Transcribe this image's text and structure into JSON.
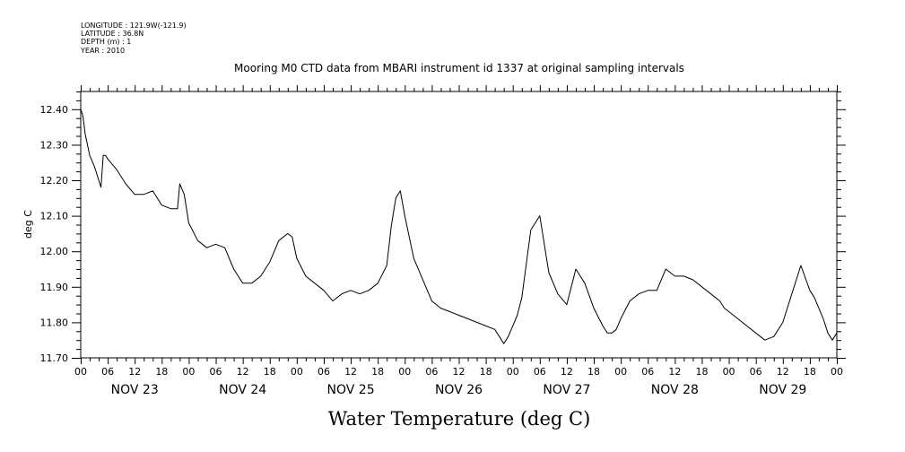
{
  "header": {
    "meta_lines": [
      "LONGITUDE : 121.9W(-121.9)",
      "LATITUDE : 36.8N",
      "DEPTH (m) : 1",
      "YEAR : 2010"
    ]
  },
  "chart_data": {
    "type": "line",
    "title": "Mooring M0 CTD data from MBARI instrument id 1337 at original sampling intervals",
    "xlabel": "Water Temperature (deg C)",
    "ylabel": "deg C",
    "ylim": [
      11.7,
      12.45
    ],
    "yticks": [
      "12.40",
      "12.30",
      "12.20",
      "12.10",
      "12.00",
      "11.90",
      "11.80",
      "11.70"
    ],
    "x_range_hours": [
      0,
      168
    ],
    "hour_tick_labels": [
      "00",
      "06",
      "12",
      "18"
    ],
    "day_labels": [
      "NOV 23",
      "NOV 24",
      "NOV 25",
      "NOV 26",
      "NOV 27",
      "NOV 28",
      "NOV 29"
    ],
    "grid": false,
    "color": "#000000",
    "series": [
      {
        "x_hours": [
          0,
          0.5,
          1,
          2,
          3,
          4,
          4.5,
          5,
          5.5,
          6,
          8,
          10,
          12,
          14,
          16,
          18,
          20,
          21.5,
          22,
          23,
          24,
          26,
          28,
          30,
          32,
          34,
          36,
          38,
          40,
          42,
          44,
          46,
          47,
          48,
          50,
          52,
          54,
          56,
          58,
          60,
          62,
          64,
          66,
          68,
          69,
          70,
          71,
          72,
          74,
          76,
          78,
          80,
          82,
          84,
          86,
          88,
          90,
          92,
          93,
          94,
          95,
          96,
          97,
          98,
          100,
          102,
          104,
          106,
          108,
          110,
          112,
          114,
          116,
          117,
          118,
          119,
          120,
          122,
          124,
          126,
          128,
          130,
          132,
          134,
          136,
          138,
          140,
          141,
          142,
          143,
          144,
          146,
          148,
          150,
          152,
          154,
          156,
          158,
          160,
          162,
          163,
          164,
          165,
          166,
          167,
          168
        ],
        "y": [
          12.4,
          12.38,
          12.33,
          12.27,
          12.24,
          12.2,
          12.18,
          12.27,
          12.27,
          12.26,
          12.23,
          12.19,
          12.16,
          12.16,
          12.17,
          12.13,
          12.12,
          12.12,
          12.19,
          12.16,
          12.08,
          12.03,
          12.01,
          12.02,
          12.01,
          11.95,
          11.91,
          11.91,
          11.93,
          11.97,
          12.03,
          12.05,
          12.04,
          11.98,
          11.93,
          11.91,
          11.89,
          11.86,
          11.88,
          11.89,
          11.88,
          11.89,
          11.91,
          11.96,
          12.07,
          12.15,
          12.17,
          12.1,
          11.98,
          11.92,
          11.86,
          11.84,
          11.83,
          11.82,
          11.81,
          11.8,
          11.79,
          11.78,
          11.76,
          11.74,
          11.76,
          11.79,
          11.82,
          11.87,
          12.06,
          12.1,
          11.94,
          11.88,
          11.85,
          11.95,
          11.91,
          11.84,
          11.79,
          11.77,
          11.77,
          11.78,
          11.81,
          11.86,
          11.88,
          11.89,
          11.89,
          11.95,
          11.93,
          11.93,
          11.92,
          11.9,
          11.88,
          11.87,
          11.86,
          11.84,
          11.83,
          11.81,
          11.79,
          11.77,
          11.75,
          11.76,
          11.8,
          11.88,
          11.96,
          11.89,
          11.87,
          11.84,
          11.81,
          11.77,
          11.75,
          11.77
        ]
      }
    ]
  }
}
